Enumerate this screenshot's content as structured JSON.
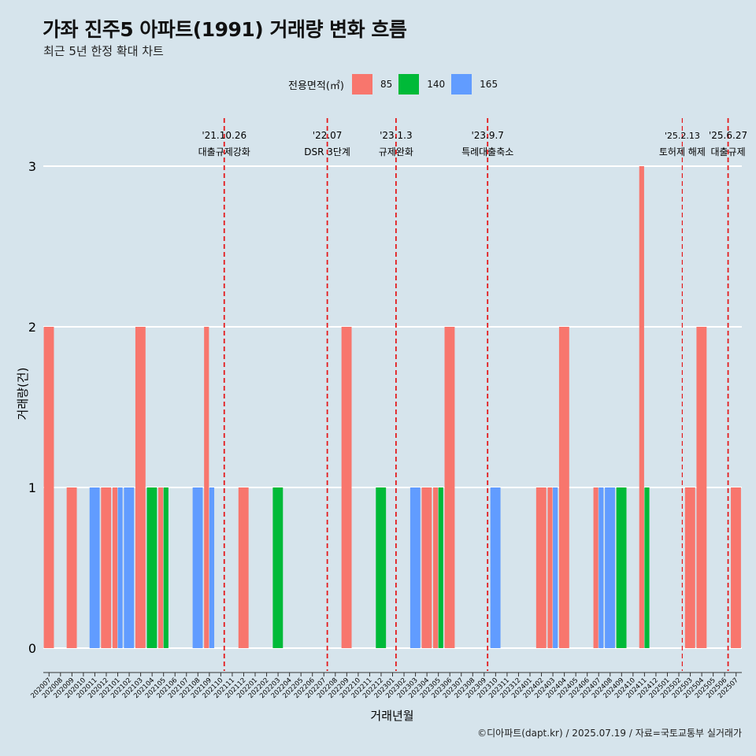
{
  "header": {
    "title": "가좌 진주5 아파트(1991) 거래량 변화 흐름",
    "subtitle": "최근 5년 한정 확대 차트"
  },
  "legend": {
    "title": "전용면적(㎡)",
    "items": [
      {
        "label": "85",
        "color": "#f8766d"
      },
      {
        "label": "140",
        "color": "#00ba38"
      },
      {
        "label": "165",
        "color": "#619cff"
      }
    ]
  },
  "caption": "©디아파트(dapt.kr) / 2025.07.19 / 자료=국토교통부 실거래가",
  "chart_data": {
    "type": "bar",
    "xlabel": "거래년월",
    "ylabel": "거래량(건)",
    "ylim": [
      0,
      3
    ],
    "yticks": [
      0,
      1,
      2,
      3
    ],
    "grid": true,
    "categories": [
      "202007",
      "202008",
      "202009",
      "202010",
      "202011",
      "202012",
      "202101",
      "202102",
      "202103",
      "202104",
      "202105",
      "202106",
      "202107",
      "202108",
      "202109",
      "202110",
      "202111",
      "202112",
      "202201",
      "202202",
      "202203",
      "202204",
      "202205",
      "202206",
      "202207",
      "202208",
      "202209",
      "202210",
      "202211",
      "202212",
      "202301",
      "202302",
      "202303",
      "202304",
      "202305",
      "202306",
      "202307",
      "202308",
      "202309",
      "202310",
      "202311",
      "202312",
      "202401",
      "202402",
      "202403",
      "202404",
      "202405",
      "202406",
      "202407",
      "202408",
      "202409",
      "202410",
      "202411",
      "202412",
      "202501",
      "202502",
      "202503",
      "202504",
      "202505",
      "202506",
      "202507"
    ],
    "series": [
      {
        "name": "85",
        "color": "#f8766d",
        "values": [
          2,
          0,
          1,
          0,
          0,
          1,
          1,
          0,
          2,
          0,
          1,
          0,
          0,
          0,
          2,
          0,
          0,
          1,
          0,
          0,
          0,
          0,
          0,
          0,
          0,
          0,
          2,
          0,
          0,
          0,
          0,
          0,
          0,
          1,
          1,
          2,
          0,
          0,
          0,
          0,
          0,
          0,
          0,
          1,
          1,
          2,
          0,
          0,
          1,
          0,
          0,
          0,
          3,
          0,
          0,
          0,
          1,
          2,
          0,
          0,
          1
        ]
      },
      {
        "name": "140",
        "color": "#00ba38",
        "values": [
          0,
          0,
          0,
          0,
          0,
          0,
          0,
          0,
          0,
          1,
          1,
          0,
          0,
          0,
          0,
          0,
          0,
          0,
          0,
          0,
          1,
          0,
          0,
          0,
          0,
          0,
          0,
          0,
          0,
          1,
          0,
          0,
          0,
          0,
          1,
          0,
          0,
          0,
          0,
          0,
          0,
          0,
          0,
          0,
          0,
          0,
          0,
          0,
          0,
          0,
          1,
          0,
          1,
          0,
          0,
          0,
          0,
          0,
          0,
          0,
          0
        ]
      },
      {
        "name": "165",
        "color": "#619cff",
        "values": [
          0,
          0,
          0,
          0,
          1,
          0,
          1,
          1,
          0,
          0,
          0,
          0,
          0,
          1,
          1,
          0,
          0,
          0,
          0,
          0,
          0,
          0,
          0,
          0,
          0,
          0,
          0,
          0,
          0,
          0,
          0,
          0,
          1,
          0,
          0,
          0,
          0,
          0,
          0,
          1,
          0,
          0,
          0,
          0,
          1,
          0,
          0,
          0,
          1,
          1,
          0,
          0,
          0,
          0,
          0,
          0,
          0,
          0,
          0,
          0,
          0
        ]
      }
    ],
    "events": [
      {
        "date": "'21.10.26",
        "label": "대출규제강화",
        "index": 15.8
      },
      {
        "date": "'22.07",
        "label": "DSR 3단계",
        "index": 24.8
      },
      {
        "date": "'23.1.3",
        "label": "규제완화",
        "index": 30.8
      },
      {
        "date": "'23.9.7",
        "label": "특례대출축소",
        "index": 38.8
      },
      {
        "date": "'25.2.13",
        "label": "토허제 해제",
        "index": 55.8,
        "light": true
      },
      {
        "date": "'25.6.27",
        "label": "대출규제",
        "index": 59.8
      }
    ]
  }
}
